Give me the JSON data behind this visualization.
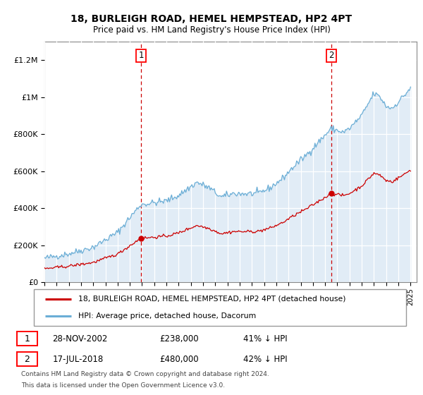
{
  "title1": "18, BURLEIGH ROAD, HEMEL HEMPSTEAD, HP2 4PT",
  "title2": "Price paid vs. HM Land Registry's House Price Index (HPI)",
  "sale1_date": "28-NOV-2002",
  "sale1_price": 238000,
  "sale1_label": "41% ↓ HPI",
  "sale2_date": "17-JUL-2018",
  "sale2_price": 480000,
  "sale2_label": "42% ↓ HPI",
  "sale1_year": 2002.91,
  "sale2_year": 2018.54,
  "legend_line1": "18, BURLEIGH ROAD, HEMEL HEMPSTEAD, HP2 4PT (detached house)",
  "legend_line2": "HPI: Average price, detached house, Dacorum",
  "footer1": "Contains HM Land Registry data © Crown copyright and database right 2024.",
  "footer2": "This data is licensed under the Open Government Licence v3.0.",
  "hpi_color": "#6baed6",
  "price_color": "#cc0000",
  "bg_fill": "#dce9f5",
  "vline_color": "#cc0000",
  "grid_color": "#c8d8e8",
  "ylim_max": 1300000,
  "xlim_min": 1995,
  "xlim_max": 2025.5
}
